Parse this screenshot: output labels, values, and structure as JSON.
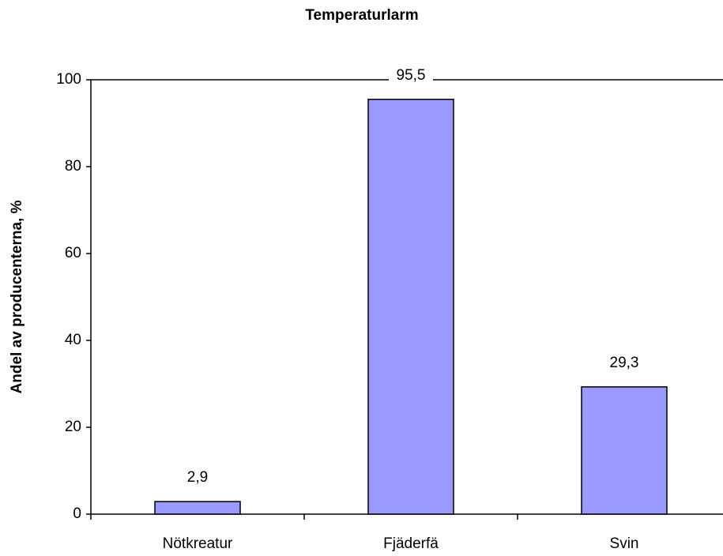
{
  "chart_data": {
    "type": "bar",
    "title": "Temperaturlarm",
    "y_label": "Andel av producenterna, %",
    "categories": [
      "Nötkreatur",
      "Fjäderfä",
      "Svin"
    ],
    "values": [
      2.9,
      95.5,
      29.3
    ],
    "value_labels": [
      "2,9",
      "95,5",
      "29,3"
    ],
    "color": "#9999ff",
    "ylim": [
      0,
      100
    ],
    "yticks": [
      0,
      20,
      40,
      60,
      80,
      100
    ],
    "grid": false
  }
}
